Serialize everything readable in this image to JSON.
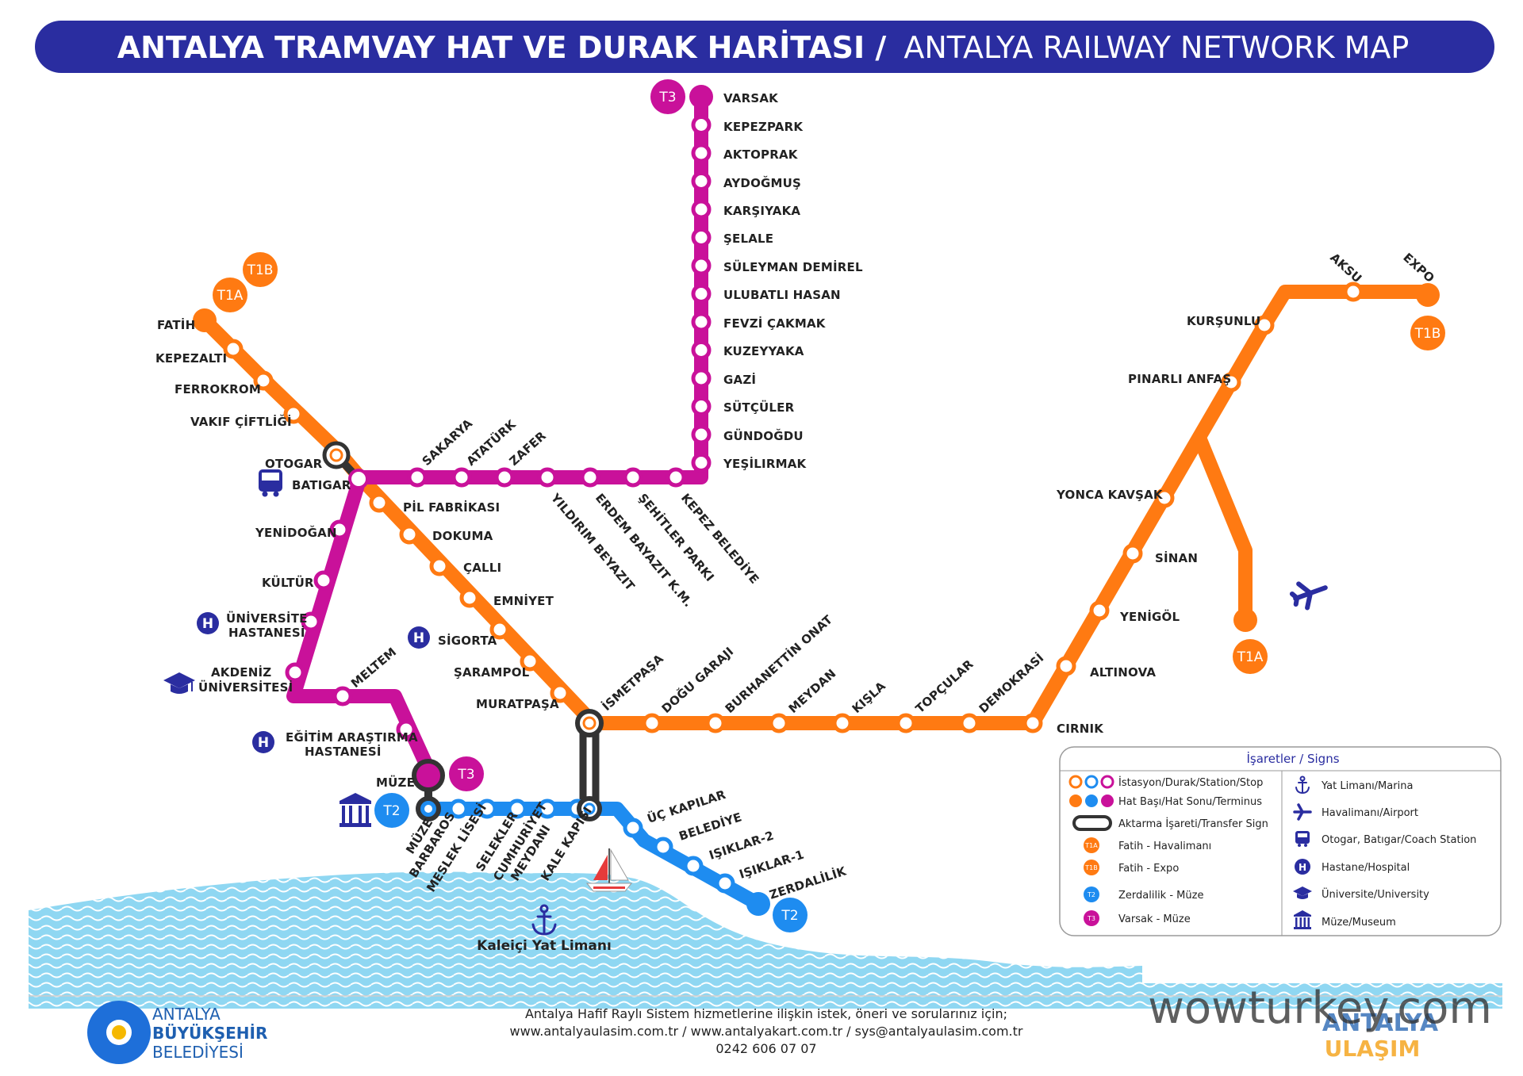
{
  "title": {
    "bold": "ANTALYA TRAMVAY HAT VE DURAK HARİTASI /",
    "light": "ANTALYA RAILWAY NETWORK MAP"
  },
  "colors": {
    "orange": "#FF7A12",
    "blue": "#1E8CF0",
    "magenta": "#C9119A",
    "navy": "#2A2DA0",
    "transfer": "#333333",
    "sea": "#8FD7F2"
  },
  "badges": {
    "t1a": "T1A",
    "t1b": "T1B",
    "t2": "T2",
    "t3": "T3"
  },
  "stations": {
    "t3": [
      "VARSAK",
      "KEPEZPARK",
      "AKTOPRAK",
      "AYDOĞMUŞ",
      "KARŞIYAKA",
      "ŞELALE",
      "SÜLEYMAN DEMİREL",
      "ULUBATLI HASAN",
      "FEVZİ ÇAKMAK",
      "KUZEYYAKA",
      "GAZİ",
      "SÜTÇÜLER",
      "GÜNDOĞDU",
      "YEŞİLIRMAK"
    ],
    "t3_horizontal_upper": [
      "SAKARYA",
      "ATATÜRK",
      "ZAFER"
    ],
    "t3_horizontal_lower": [
      "YILDIRIM BEYAZIT",
      "ERDEM BAYAZIT K.M.",
      "ŞEHİTLER PARKI",
      "KEPEZ BELEDİYE"
    ],
    "t3_west": [
      "BATIGAR",
      "YENİDOĞAN",
      "KÜLTÜR",
      "ÜNİVERSİTE",
      "HASTANESİ",
      "AKDENİZ",
      "ÜNİVERSİTESİ",
      "MELTEM",
      "EĞİTİM ARAŞTIRMA",
      "HASTANESİ",
      "MÜZE"
    ],
    "t1_west": [
      "FATİH",
      "KEPEZALTI",
      "FERROKROM",
      "VAKIF ÇİFTLİĞİ",
      "OTOGAR"
    ],
    "t1_diag": [
      "PİL FABRİKASI",
      "DOKUMA",
      "ÇALLI",
      "EMNİYET",
      "SİGORTA",
      "ŞARAMPOL",
      "MURATPAŞA",
      "İSMETPAŞA"
    ],
    "t1_east": [
      "DOĞU GARAJI",
      "BURHANETTİN ONAT",
      "MEYDAN",
      "KIŞLA",
      "TOPÇULAR",
      "DEMOKRASİ",
      "CIRNIK"
    ],
    "t1_north": [
      "ALTINOVA",
      "YENİGÖL",
      "SİNAN",
      "YONCA KAVŞAK",
      "PINARLI ANFAŞ",
      "KURŞUNLU",
      "AKSU",
      "EXPO"
    ],
    "airport": [
      "HAVALİMANI",
      "AIRPORT"
    ],
    "t2": [
      "MÜZE",
      "BARBAROS",
      "MESLEK LİSESİ",
      "SELEKLER",
      "CUMHURİYET",
      "MEYDANI",
      "KALE KAPISI",
      "ÜÇ KAPILAR",
      "BELEDİYE",
      "IŞIKLAR-2",
      "IŞIKLAR-1",
      "ZERDALİLİK"
    ]
  },
  "marina_label": "Kaleiçi Yat Limanı",
  "legend": {
    "title": "İşaretler / Signs",
    "left": [
      "İstasyon/Durak/Station/Stop",
      "Hat Başı/Hat Sonu/Terminus",
      "Aktarma İşareti/Transfer Sign",
      "Fatih - Havalimanı",
      "Fatih - Expo",
      "Zerdalilik - Müze",
      "Varsak - Müze"
    ],
    "right": [
      "Yat Limanı/Marina",
      "Havalimanı/Airport",
      "Otogar, Batıgar/Coach Station",
      "Hastane/Hospital",
      "Üniversite/University",
      "Müze/Museum"
    ],
    "mini_badges": [
      "T1A",
      "T1B",
      "T2",
      "T3"
    ]
  },
  "icons": [
    "anchor-icon",
    "airplane-icon",
    "bus-icon",
    "hospital-icon",
    "graduation-cap-icon",
    "museum-icon",
    "sailboat-icon",
    "sun-logo-icon"
  ],
  "footer": {
    "line1": "Antalya Hafif Raylı Sistem hizmetlerine ilişkin istek, öneri ve sorularınız için;",
    "line2": "www.antalyaulasim.com.tr / www.antalyakart.com.tr / sys@antalyaulasim.com.tr",
    "line3": "0242 606 07 07"
  },
  "logo": {
    "line1": "ANTALYA",
    "line2": "BÜYÜKŞEHİR",
    "line3": "BELEDİYESİ",
    "hospital_letter": "H"
  },
  "watermark": "wowturkey.com",
  "watermark_sub": {
    "line1": "ANTALYA",
    "line2": "ULAŞIM"
  }
}
